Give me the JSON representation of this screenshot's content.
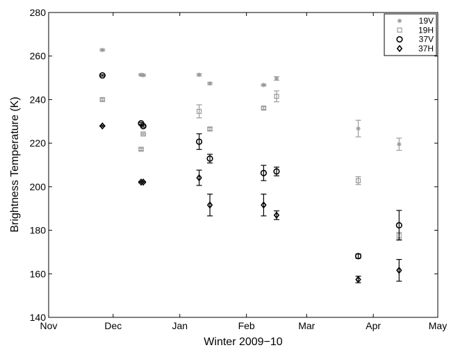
{
  "chart_data": {
    "type": "scatter",
    "xlabel": "Winter 2009−10",
    "ylabel": "Brightness Temperature (K)",
    "x_ticks": [
      "Nov",
      "Dec",
      "Jan",
      "Feb",
      "Mar",
      "Apr",
      "May"
    ],
    "x_tick_dates": [
      "2009-11-01",
      "2009-12-01",
      "2010-01-01",
      "2010-02-01",
      "2010-03-01",
      "2010-04-01",
      "2010-05-01"
    ],
    "xlim": [
      "2009-11-01",
      "2010-05-01"
    ],
    "ylim": [
      140,
      280
    ],
    "y_ticks": [
      140,
      160,
      180,
      200,
      220,
      240,
      260,
      280
    ],
    "legend_position": "top-right",
    "grid": false,
    "series": [
      {
        "name": "19V",
        "marker": "asterisk",
        "color": "#9a9a9a",
        "points": [
          {
            "x": "2009-11-26",
            "y": 262.8,
            "err": 0.4
          },
          {
            "x": "2009-12-14",
            "y": 251.4,
            "err": 0.4
          },
          {
            "x": "2009-12-15",
            "y": 251.2,
            "err": 0.4
          },
          {
            "x": "2010-01-10",
            "y": 251.4,
            "err": 0.5
          },
          {
            "x": "2010-01-15",
            "y": 247.4,
            "err": 0.5
          },
          {
            "x": "2010-02-09",
            "y": 246.7,
            "err": 0.4
          },
          {
            "x": "2010-02-15",
            "y": 249.7,
            "err": 0.8
          },
          {
            "x": "2010-03-25",
            "y": 226.7,
            "err": 3.8
          },
          {
            "x": "2010-04-13",
            "y": 219.5,
            "err": 2.8
          }
        ]
      },
      {
        "name": "19H",
        "marker": "square",
        "color": "#9a9a9a",
        "points": [
          {
            "x": "2009-11-26",
            "y": 240.0,
            "err": 0.5
          },
          {
            "x": "2009-12-14",
            "y": 217.2,
            "err": 0.5
          },
          {
            "x": "2009-12-15",
            "y": 224.2,
            "err": 0.4
          },
          {
            "x": "2010-01-10",
            "y": 234.6,
            "err": 3.0
          },
          {
            "x": "2010-01-15",
            "y": 226.5,
            "err": 0.6
          },
          {
            "x": "2010-02-09",
            "y": 236.1,
            "err": 0.6
          },
          {
            "x": "2010-02-15",
            "y": 241.5,
            "err": 2.5
          },
          {
            "x": "2010-03-25",
            "y": 202.8,
            "err": 1.8
          },
          {
            "x": "2010-04-13",
            "y": 177.5,
            "err": 1.5
          }
        ]
      },
      {
        "name": "37V",
        "marker": "circle",
        "color": "#000000",
        "points": [
          {
            "x": "2009-11-26",
            "y": 251.1,
            "err": 0.3
          },
          {
            "x": "2009-12-14",
            "y": 229.1,
            "err": 0.4
          },
          {
            "x": "2009-12-15",
            "y": 227.8,
            "err": 0.4
          },
          {
            "x": "2010-01-10",
            "y": 220.7,
            "err": 3.6
          },
          {
            "x": "2010-01-15",
            "y": 212.9,
            "err": 2.0
          },
          {
            "x": "2010-02-09",
            "y": 206.3,
            "err": 3.5
          },
          {
            "x": "2010-02-15",
            "y": 207.0,
            "err": 2.0
          },
          {
            "x": "2010-03-25",
            "y": 168.1,
            "err": 1.0
          },
          {
            "x": "2010-04-13",
            "y": 182.3,
            "err": 6.8
          }
        ]
      },
      {
        "name": "37H",
        "marker": "diamond",
        "color": "#000000",
        "points": [
          {
            "x": "2009-11-26",
            "y": 227.9,
            "err": 0.3
          },
          {
            "x": "2009-12-14",
            "y": 202.1,
            "err": 0.3
          },
          {
            "x": "2009-12-15",
            "y": 202.1,
            "err": 0.3
          },
          {
            "x": "2010-01-10",
            "y": 204.1,
            "err": 3.5
          },
          {
            "x": "2010-01-15",
            "y": 191.6,
            "err": 5.0
          },
          {
            "x": "2010-02-09",
            "y": 191.6,
            "err": 5.0
          },
          {
            "x": "2010-02-15",
            "y": 186.9,
            "err": 2.0
          },
          {
            "x": "2010-03-25",
            "y": 157.4,
            "err": 1.5
          },
          {
            "x": "2010-04-13",
            "y": 161.6,
            "err": 5.0
          }
        ]
      }
    ]
  }
}
